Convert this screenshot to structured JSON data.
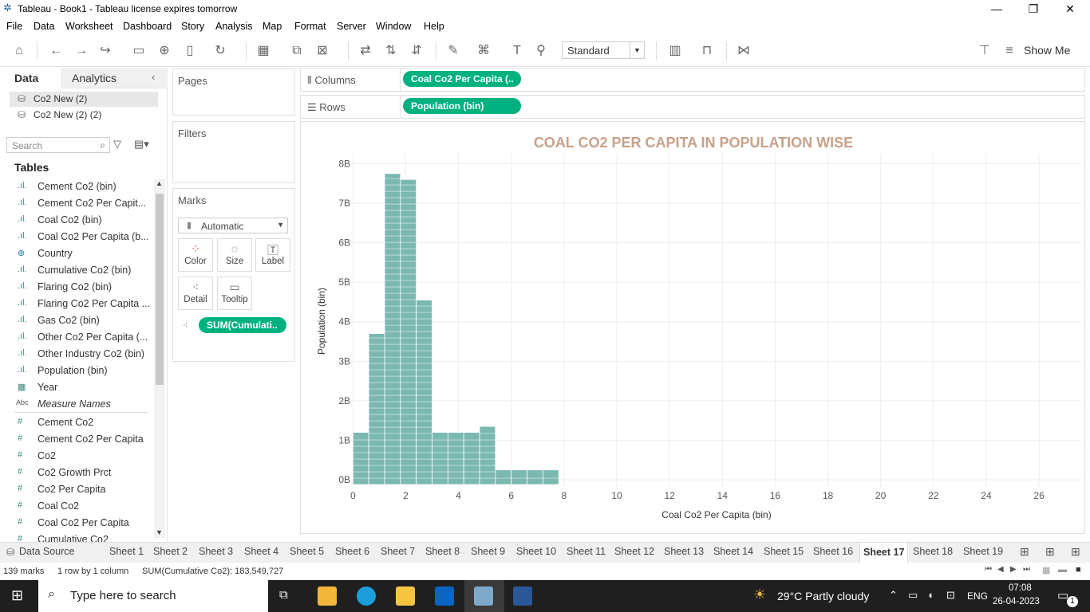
{
  "window": {
    "title": "Tableau - Book1 - Tableau license expires tomorrow"
  },
  "menu": [
    "File",
    "Data",
    "Worksheet",
    "Dashboard",
    "Story",
    "Analysis",
    "Map",
    "Format",
    "Server",
    "Window",
    "Help"
  ],
  "toolbar": {
    "fit": "Standard",
    "show_me": "Show Me"
  },
  "left_panel": {
    "tab_data": "Data",
    "tab_analytics": "Analytics",
    "datasources": [
      "Co2 New (2)",
      "Co2 New (2) (2)"
    ],
    "search_placeholder": "Search",
    "tables_label": "Tables",
    "fields": [
      {
        "name": "Cement Co2 (bin)",
        "icon": "bin-icon"
      },
      {
        "name": "Cement Co2 Per Capit...",
        "icon": "bin-icon"
      },
      {
        "name": "Coal Co2 (bin)",
        "icon": "bin-icon"
      },
      {
        "name": "Coal Co2 Per Capita (b...",
        "icon": "bin-icon"
      },
      {
        "name": "Country",
        "icon": "globe-icon"
      },
      {
        "name": "Cumulative Co2 (bin)",
        "icon": "bin-icon"
      },
      {
        "name": "Flaring Co2 (bin)",
        "icon": "bin-icon"
      },
      {
        "name": "Flaring Co2 Per Capita ...",
        "icon": "bin-icon"
      },
      {
        "name": "Gas Co2 (bin)",
        "icon": "bin-icon"
      },
      {
        "name": "Other Co2 Per Capita (...",
        "icon": "bin-icon"
      },
      {
        "name": "Other Industry Co2 (bin)",
        "icon": "bin-icon"
      },
      {
        "name": "Population (bin)",
        "icon": "bin-icon"
      },
      {
        "name": "Year",
        "icon": "calendar-icon"
      },
      {
        "name": "Measure Names",
        "icon": "abc-icon"
      },
      {
        "name": "Cement Co2",
        "icon": "hash-icon"
      },
      {
        "name": "Cement Co2 Per Capita",
        "icon": "hash-icon"
      },
      {
        "name": "Co2",
        "icon": "hash-icon"
      },
      {
        "name": "Co2 Growth Prct",
        "icon": "hash-icon"
      },
      {
        "name": "Co2 Per Capita",
        "icon": "hash-icon"
      },
      {
        "name": "Coal Co2",
        "icon": "hash-icon"
      },
      {
        "name": "Coal Co2 Per Capita",
        "icon": "hash-icon"
      },
      {
        "name": "Cumulative Co2",
        "icon": "hash-icon"
      }
    ]
  },
  "cards": {
    "pages": "Pages",
    "filters": "Filters",
    "marks": "Marks",
    "mark_type": "Automatic",
    "mark_buttons": [
      "Color",
      "Size",
      "Label",
      "Detail",
      "Tooltip"
    ],
    "detail_pill": "SUM(Cumulati.."
  },
  "shelves": {
    "columns_label": "Columns",
    "columns_pill": "Coal Co2 Per Capita (..",
    "rows_label": "Rows",
    "rows_pill": "Population (bin)"
  },
  "chart_data": {
    "type": "bar",
    "title": "COAL CO2 PER CAPITA IN POPULATION WISE",
    "xlabel": "Coal Co2 Per Capita (bin)",
    "ylabel": "Population (bin)",
    "x_ticks": [
      "0",
      "2",
      "4",
      "6",
      "8",
      "10",
      "12",
      "14",
      "16",
      "18",
      "20",
      "22",
      "24",
      "26"
    ],
    "y_ticks": [
      "0B",
      "1B",
      "2B",
      "3B",
      "4B",
      "5B",
      "6B",
      "7B",
      "8B"
    ],
    "xlim": [
      -0.1,
      27.6
    ],
    "ylim": [
      -0.18,
      8.25
    ],
    "bin_width": 0.6,
    "bars": [
      {
        "x": 0.0,
        "value": 1.2
      },
      {
        "x": 0.6,
        "value": 3.7
      },
      {
        "x": 1.2,
        "value": 7.75
      },
      {
        "x": 1.8,
        "value": 7.6
      },
      {
        "x": 2.4,
        "value": 4.55
      },
      {
        "x": 3.0,
        "value": 1.2
      },
      {
        "x": 3.6,
        "value": 1.2
      },
      {
        "x": 4.2,
        "value": 1.2
      },
      {
        "x": 4.8,
        "value": 1.35
      },
      {
        "x": 5.4,
        "value": 0.25
      },
      {
        "x": 6.0,
        "value": 0.25
      },
      {
        "x": 6.6,
        "value": 0.25
      },
      {
        "x": 7.2,
        "value": 0.25
      }
    ],
    "color": "#7ab8b0",
    "grid": true
  },
  "sheet_tabs": [
    "Data Source",
    "Sheet 1",
    "Sheet 2",
    "Sheet 3",
    "Sheet 4",
    "Sheet 5",
    "Sheet 6",
    "Sheet 7",
    "Sheet 8",
    "Sheet 9",
    "Sheet 10",
    "Sheet 11",
    "Sheet 12",
    "Sheet 13",
    "Sheet 14",
    "Sheet 15",
    "Sheet 16",
    "Sheet 17",
    "Sheet 18",
    "Sheet 19"
  ],
  "active_sheet": "Sheet 17",
  "status": {
    "marks": "139 marks",
    "dims": "1 row by 1 column",
    "sum": "SUM(Cumulative Co2): 183,549,727"
  },
  "taskbar": {
    "search_placeholder": "Type here to search",
    "weather": "29°C  Partly cloudy",
    "lang": "ENG",
    "time": "07:08",
    "date": "26-04-2023",
    "notifications": "1"
  }
}
